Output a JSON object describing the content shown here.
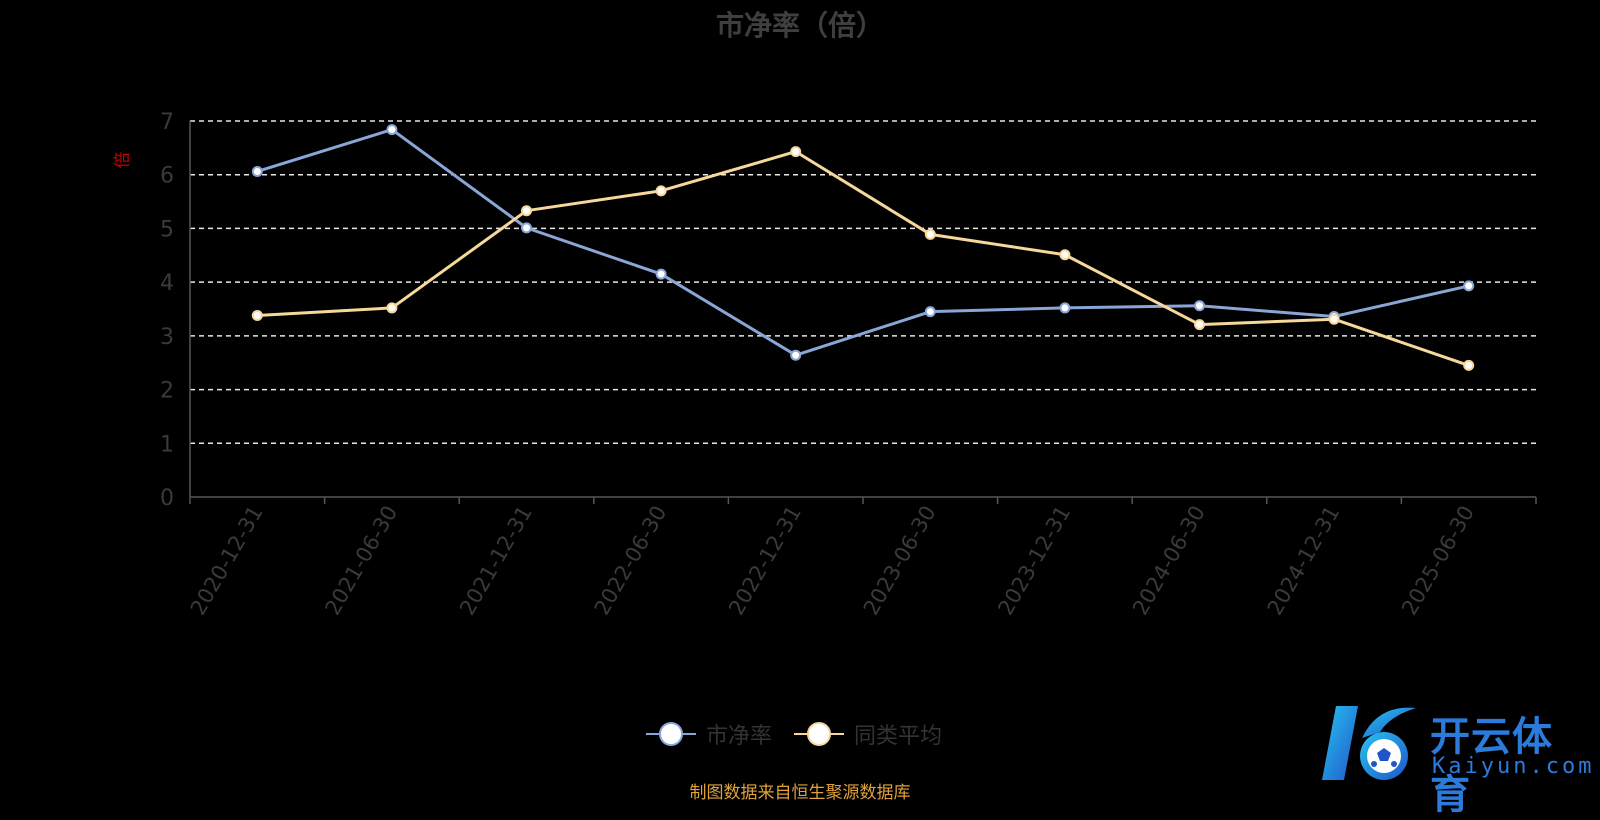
{
  "chart_data": {
    "type": "line",
    "title": "市净率（倍）",
    "ylabel": "倍",
    "categories": [
      "2020-12-31",
      "2021-06-30",
      "2021-12-31",
      "2022-06-30",
      "2022-12-31",
      "2023-06-30",
      "2023-12-31",
      "2024-06-30",
      "2024-12-31",
      "2025-06-30"
    ],
    "ylim": [
      0,
      7
    ],
    "yticks": [
      0,
      1,
      2,
      3,
      4,
      5,
      6,
      7
    ],
    "grid": true,
    "legend_position": "bottom",
    "series": [
      {
        "name": "市净率",
        "color": "#8aa6d6",
        "values": [
          6.06,
          6.84,
          5.01,
          4.15,
          2.64,
          3.45,
          3.52,
          3.56,
          3.36,
          3.93
        ]
      },
      {
        "name": "同类平均",
        "color": "#f6d89a",
        "values": [
          3.38,
          3.52,
          5.33,
          5.7,
          6.43,
          4.89,
          4.51,
          3.21,
          3.31,
          2.45
        ]
      }
    ]
  },
  "source_note": "制图数据来自恒生聚源数据库",
  "logo": {
    "name": "开云体育",
    "sub": "Kaiyun.com",
    "color": "#2b7bdc"
  }
}
